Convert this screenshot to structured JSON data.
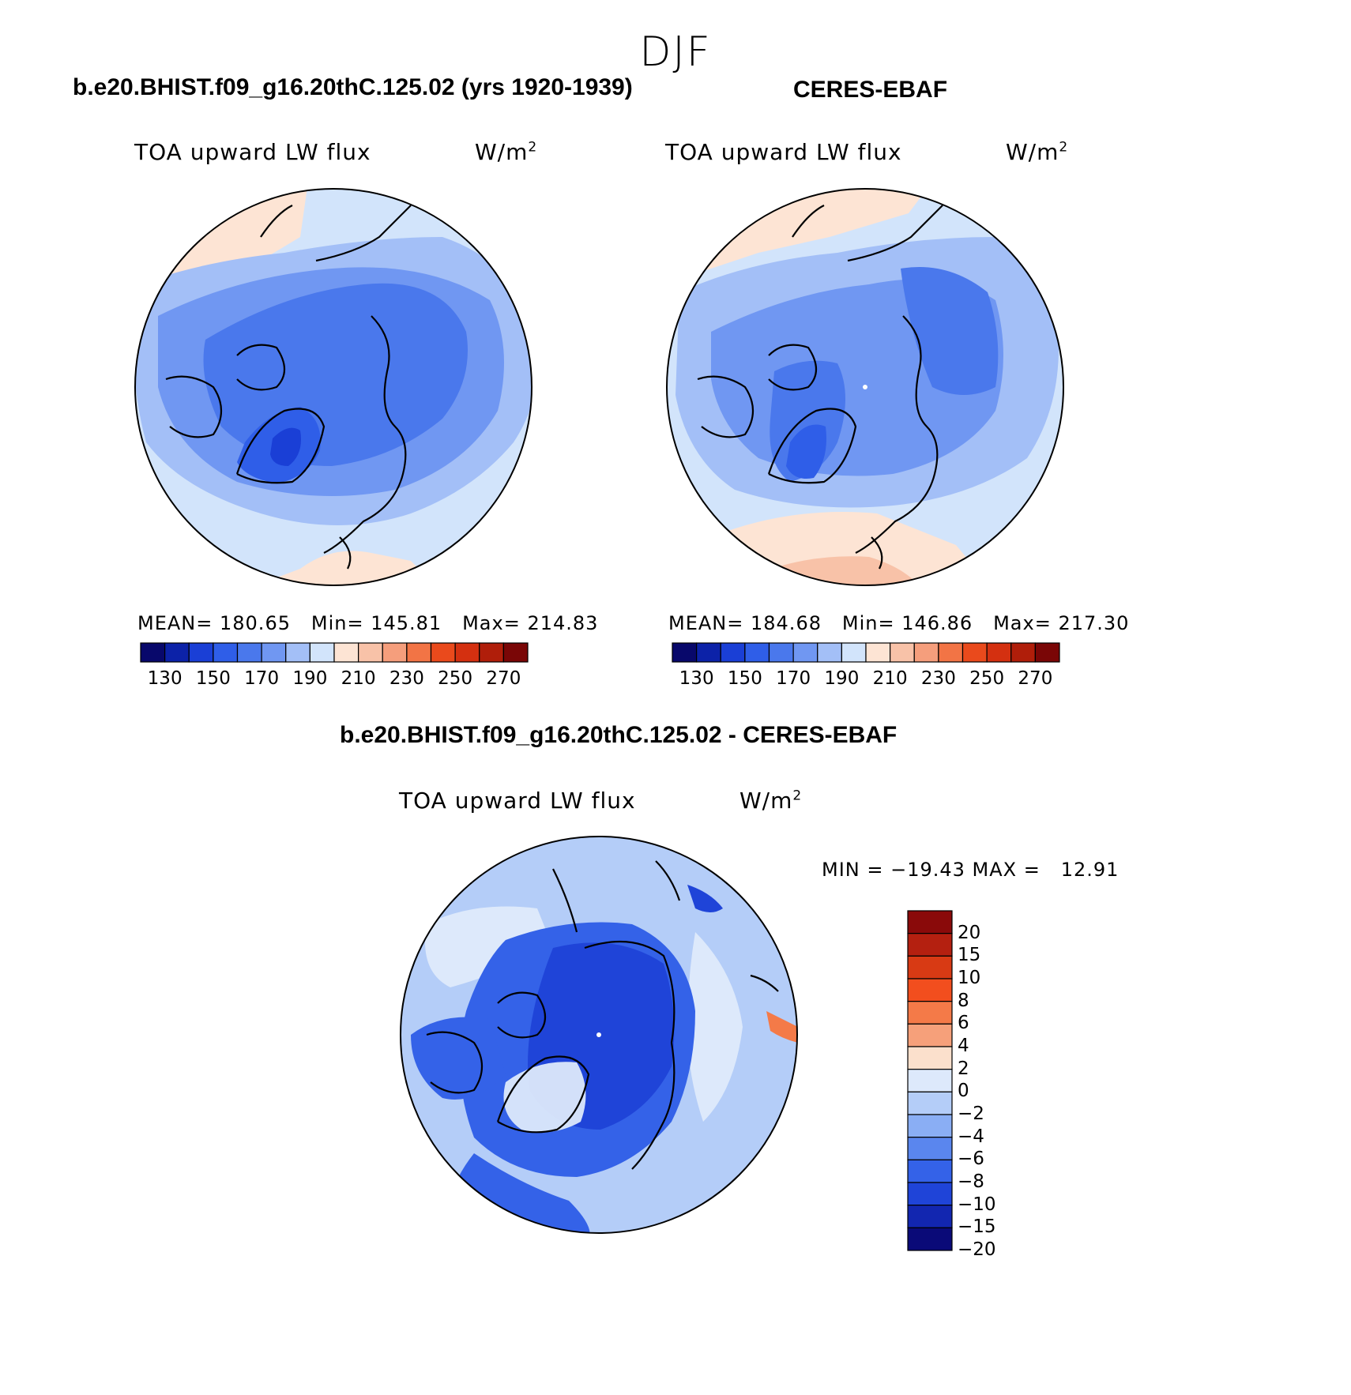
{
  "season": "DJF",
  "panels": [
    {
      "title": "b.e20.BHIST.f09_g16.20thC.125.02 (yrs 1920-1939)",
      "variable": "TOA upward LW flux",
      "units_base": "W/m",
      "units_exp": "2",
      "stats": {
        "mean_label": "MEAN=",
        "mean": "180.65",
        "min_label": "Min=",
        "min": "145.81",
        "max_label": "Max=",
        "max": "214.83"
      }
    },
    {
      "title": "CERES-EBAF",
      "variable": "TOA upward LW flux",
      "units_base": "W/m",
      "units_exp": "2",
      "stats": {
        "mean_label": "MEAN=",
        "mean": "184.68",
        "min_label": "Min=",
        "min": "146.86",
        "max_label": "Max=",
        "max": "217.30"
      }
    }
  ],
  "colorbar": {
    "colors": [
      "#08086b",
      "#0c22a8",
      "#1a3fd6",
      "#2f5ee8",
      "#4a78ec",
      "#7097f2",
      "#a3bff7",
      "#d2e4fb",
      "#fde4d4",
      "#f8c2a8",
      "#f59e7c",
      "#f27445",
      "#ea4a1c",
      "#d43010",
      "#b01e0a",
      "#7a0606"
    ],
    "labels": [
      "130",
      "150",
      "170",
      "190",
      "210",
      "230",
      "250",
      "270"
    ]
  },
  "difference": {
    "title": "b.e20.BHIST.f09_g16.20thC.125.02 - CERES-EBAF",
    "variable": "TOA upward LW flux",
    "units_base": "W/m",
    "units_exp": "2",
    "minmax": "MIN = −19.43 MAX =   12.91",
    "colors_top_to_bottom": [
      "#8a0a0a",
      "#b42010",
      "#d83a14",
      "#f24e1e",
      "#f47a48",
      "#f6a07a",
      "#fbe0cc",
      "#dde9fb",
      "#b4cdf8",
      "#8aaef4",
      "#5a86ee",
      "#3462e8",
      "#1f44d8",
      "#1226b0",
      "#0a0a78"
    ],
    "labels_top_to_bottom": [
      "20",
      "15",
      "10",
      "8",
      "6",
      "4",
      "2",
      "0",
      "−2",
      "−4",
      "−6",
      "−8",
      "−10",
      "−15",
      "−20"
    ]
  }
}
